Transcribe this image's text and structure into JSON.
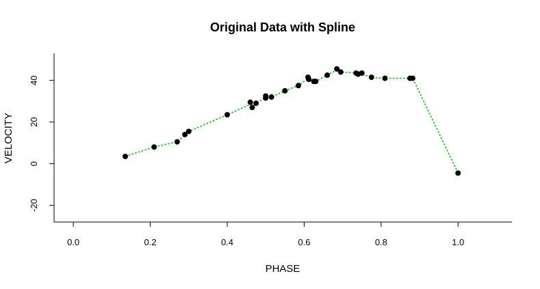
{
  "chart_data": {
    "type": "scatter",
    "title": "Original Data with Spline",
    "xlabel": "PHASE",
    "ylabel": "VELOCITY",
    "xlim": [
      -0.05,
      1.14
    ],
    "ylim": [
      -28,
      53
    ],
    "x_ticks": [
      0.0,
      0.2,
      0.4,
      0.6,
      0.8,
      1.0
    ],
    "x_tick_labels": [
      "0.0",
      "0.2",
      "0.4",
      "0.6",
      "0.8",
      "1.0"
    ],
    "y_ticks": [
      -20,
      0,
      20,
      40
    ],
    "y_tick_labels": [
      "-20",
      "0",
      "20",
      "40"
    ],
    "grid": false,
    "legend": "none",
    "point_color": "#000000",
    "line_color": "#00bb00",
    "line_style": "dotted",
    "series": [
      {
        "kind": "points",
        "x": [
          0.135,
          0.21,
          0.27,
          0.29,
          0.3,
          0.4,
          0.46,
          0.465,
          0.475,
          0.5,
          0.5,
          0.515,
          0.55,
          0.585,
          0.61,
          0.612,
          0.625,
          0.63,
          0.66,
          0.685,
          0.695,
          0.735,
          0.74,
          0.75,
          0.775,
          0.81,
          0.875,
          0.882,
          1.0
        ],
        "y": [
          3.5,
          8.0,
          10.5,
          14.0,
          15.5,
          23.5,
          29.5,
          27.0,
          29.0,
          32.5,
          31.5,
          32.0,
          35.0,
          37.5,
          41.5,
          40.5,
          39.5,
          39.5,
          42.5,
          45.5,
          44.0,
          43.5,
          43.0,
          43.5,
          41.5,
          41.0,
          41.0,
          41.0,
          -4.5
        ]
      },
      {
        "kind": "spline",
        "x": [
          0.135,
          0.21,
          0.27,
          0.3,
          0.4,
          0.46,
          0.475,
          0.5,
          0.515,
          0.55,
          0.585,
          0.61,
          0.63,
          0.66,
          0.685,
          0.695,
          0.74,
          0.775,
          0.81,
          0.882,
          1.0
        ],
        "y": [
          3.5,
          8.0,
          10.5,
          15.5,
          23.5,
          28.5,
          29.0,
          32.0,
          32.0,
          35.0,
          37.5,
          41.0,
          39.5,
          42.5,
          45.0,
          44.0,
          43.5,
          41.5,
          41.0,
          41.0,
          -4.5
        ]
      }
    ]
  }
}
